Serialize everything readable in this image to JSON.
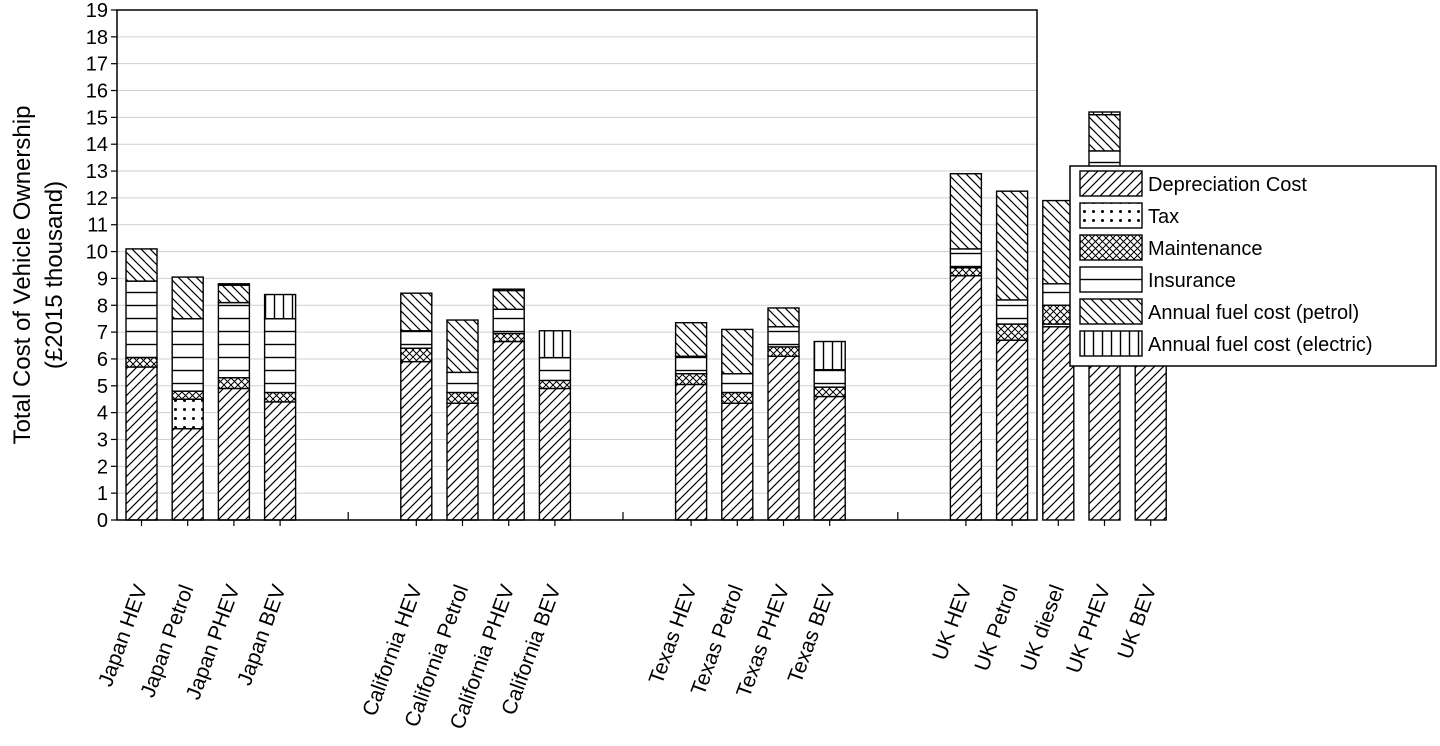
{
  "chart_data": {
    "type": "bar",
    "stacked": true,
    "ylabel_line1": "Total Cost of Vehicle Ownership",
    "ylabel_line2": "(£2015 thousand)",
    "ylim": [
      0,
      19
    ],
    "yticks": [
      "0",
      "1",
      "2",
      "3",
      "4",
      "5",
      "6",
      "7",
      "8",
      "9",
      "10",
      "11",
      "12",
      "13",
      "14",
      "15",
      "16",
      "17",
      "18",
      "19"
    ],
    "grid": true,
    "legend_position": "right",
    "categories": [
      "Japan HEV",
      "Japan Petrol",
      "Japan PHEV",
      "Japan BEV",
      "California HEV",
      "California Petrol",
      "California PHEV",
      "California BEV",
      "Texas HEV",
      "Texas Petrol",
      "Texas PHEV",
      "Texas BEV",
      "UK HEV",
      "UK Petrol",
      "UK diesel",
      "UK PHEV",
      "UK BEV"
    ],
    "category_groups": [
      4,
      4,
      4,
      5
    ],
    "series": [
      {
        "name": "Depreciation Cost",
        "pattern": "diag-fwd",
        "values": [
          5.7,
          3.4,
          4.9,
          4.4,
          5.9,
          4.35,
          6.65,
          4.9,
          5.05,
          4.35,
          6.1,
          4.6,
          9.1,
          6.7,
          7.2,
          12.75,
          9.1
        ]
      },
      {
        "name": "Tax",
        "pattern": "dots",
        "values": [
          0.0,
          1.1,
          0.0,
          0.0,
          0.0,
          0.0,
          0.0,
          0.0,
          0.0,
          0.0,
          0.0,
          0.0,
          0.0,
          0.0,
          0.1,
          0.0,
          0.0
        ]
      },
      {
        "name": "Maintenance",
        "pattern": "crosshatch",
        "values": [
          0.35,
          0.3,
          0.4,
          0.35,
          0.5,
          0.4,
          0.3,
          0.3,
          0.4,
          0.4,
          0.35,
          0.35,
          0.3,
          0.6,
          0.7,
          0.35,
          0.25
        ]
      },
      {
        "name": "Insurance",
        "pattern": "horizontal",
        "values": [
          2.85,
          2.7,
          2.8,
          2.75,
          0.65,
          0.75,
          0.9,
          0.85,
          0.65,
          0.7,
          0.75,
          0.65,
          0.7,
          0.9,
          0.8,
          0.65,
          0.7
        ]
      },
      {
        "name": "Annual fuel cost (petrol)",
        "pattern": "diag-back",
        "values": [
          1.2,
          1.55,
          0.65,
          0.0,
          1.4,
          1.95,
          0.7,
          0.0,
          1.25,
          1.65,
          0.7,
          0.0,
          2.8,
          4.05,
          3.1,
          1.35,
          0.0
        ]
      },
      {
        "name": "Annual fuel cost (electric)",
        "pattern": "vertical",
        "values": [
          0.0,
          0.0,
          0.05,
          0.9,
          0.0,
          0.0,
          0.05,
          1.0,
          0.0,
          0.0,
          0.0,
          1.05,
          0.0,
          0.0,
          0.0,
          0.1,
          0.7
        ]
      }
    ]
  },
  "legend_entries": [
    "Depreciation Cost",
    "Tax",
    "Maintenance",
    "Insurance",
    "Annual fuel cost (petrol)",
    "Annual fuel cost (electric)"
  ]
}
